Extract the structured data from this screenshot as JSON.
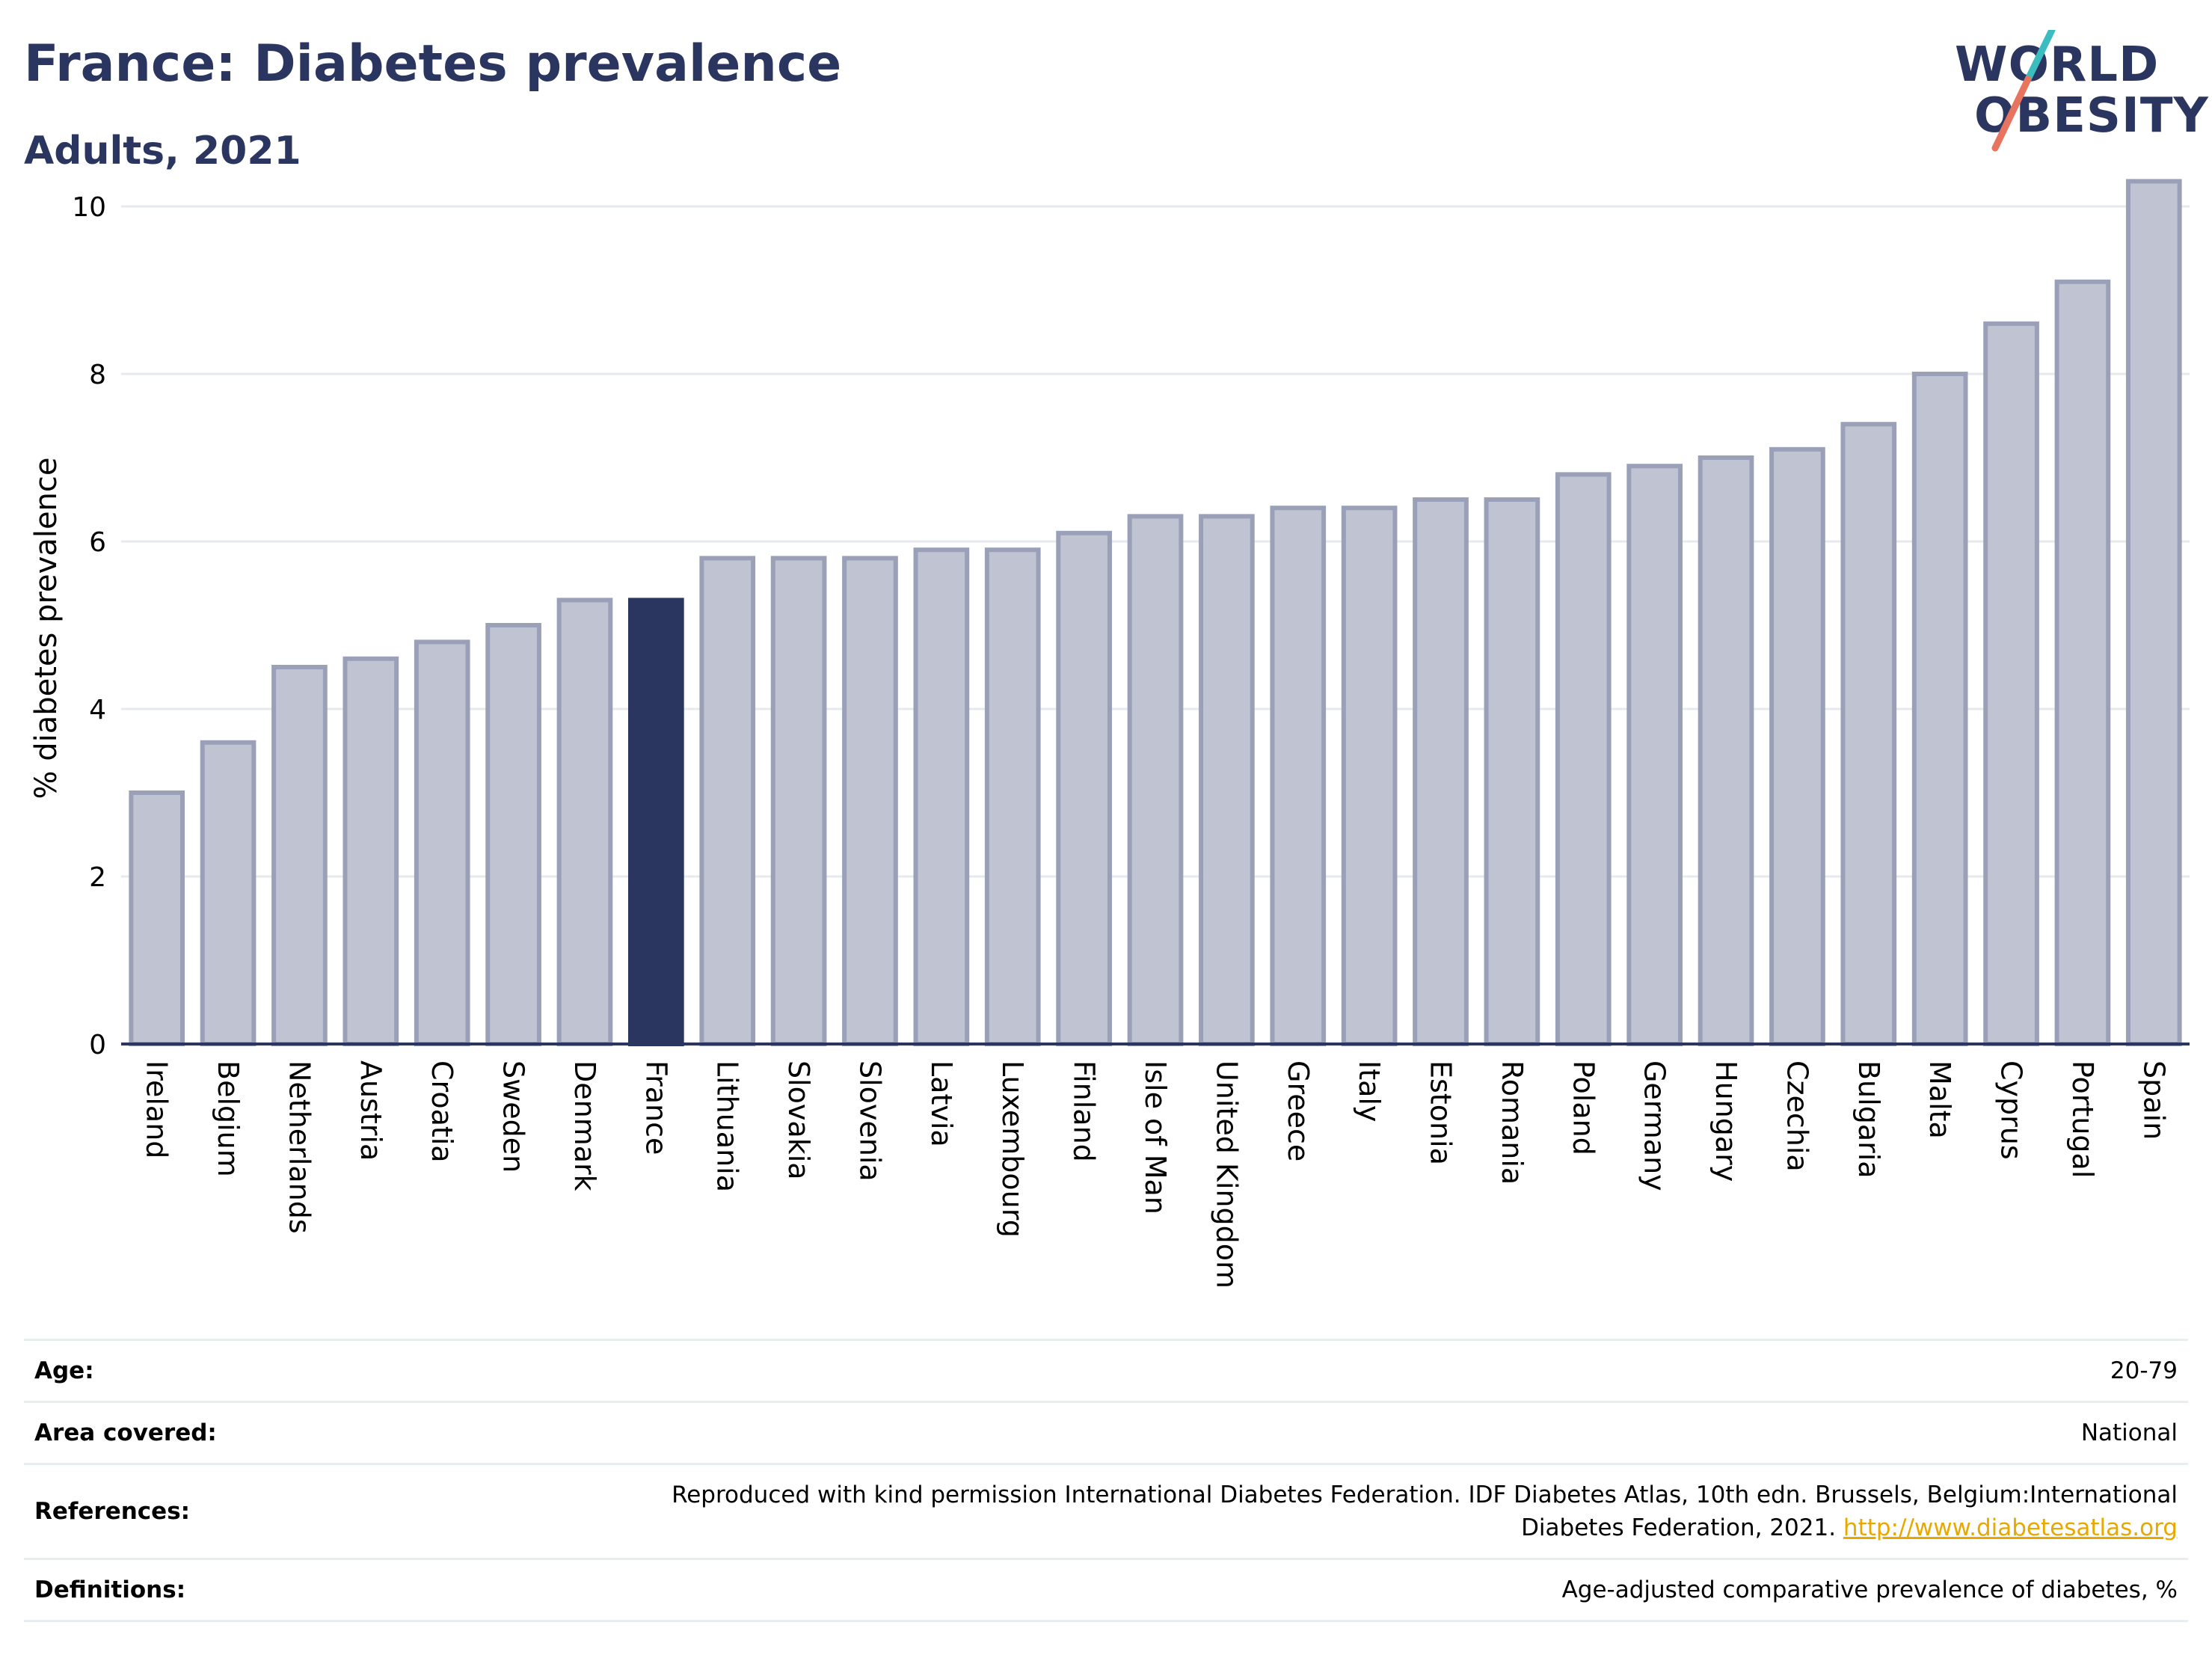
{
  "header": {
    "title": "France: Diabetes prevalence",
    "subtitle": "Adults, 2021"
  },
  "logo": {
    "line1": "WORLD",
    "line2": "OBESITY",
    "name": "world-obesity-logo"
  },
  "chart_data": {
    "type": "bar",
    "ylabel": "% diabetes prevalence",
    "xlabel": "",
    "ylim": [
      0,
      10.5
    ],
    "yticks": [
      0,
      2,
      4,
      6,
      8,
      10
    ],
    "grid": true,
    "highlight": "France",
    "colors": {
      "bar": "#c0c3d1",
      "bar_edge": "#9aa0b8",
      "highlight": "#2b3660",
      "grid": "#e6e9ee",
      "axis": "#2b3660"
    },
    "categories": [
      "Ireland",
      "Belgium",
      "Netherlands",
      "Austria",
      "Croatia",
      "Sweden",
      "Denmark",
      "France",
      "Lithuania",
      "Slovakia",
      "Slovenia",
      "Latvia",
      "Luxembourg",
      "Finland",
      "Isle of Man",
      "United Kingdom",
      "Greece",
      "Italy",
      "Estonia",
      "Romania",
      "Poland",
      "Germany",
      "Hungary",
      "Czechia",
      "Bulgaria",
      "Malta",
      "Cyprus",
      "Portugal",
      "Spain"
    ],
    "values": [
      3.0,
      3.6,
      4.5,
      4.6,
      4.8,
      5.0,
      5.3,
      5.3,
      5.8,
      5.8,
      5.8,
      5.9,
      5.9,
      6.1,
      6.3,
      6.3,
      6.4,
      6.4,
      6.5,
      6.5,
      6.8,
      6.9,
      7.0,
      7.1,
      7.4,
      8.0,
      8.6,
      9.1,
      10.3
    ]
  },
  "meta": {
    "age_label": "Age:",
    "age_value": "20-79",
    "area_label": "Area covered:",
    "area_value": "National",
    "references_label": "References:",
    "references_line1": "Reproduced with kind permission International Diabetes Federation.  IDF Diabetes Atlas, 10th edn. Brussels, Belgium:International",
    "references_line2": "Diabetes Federation, 2021. ",
    "references_link": "http://www.diabetesatlas.org",
    "definitions_label": "Definitions:",
    "definitions_value": "Age-adjusted comparative prevalence of diabetes, %"
  }
}
